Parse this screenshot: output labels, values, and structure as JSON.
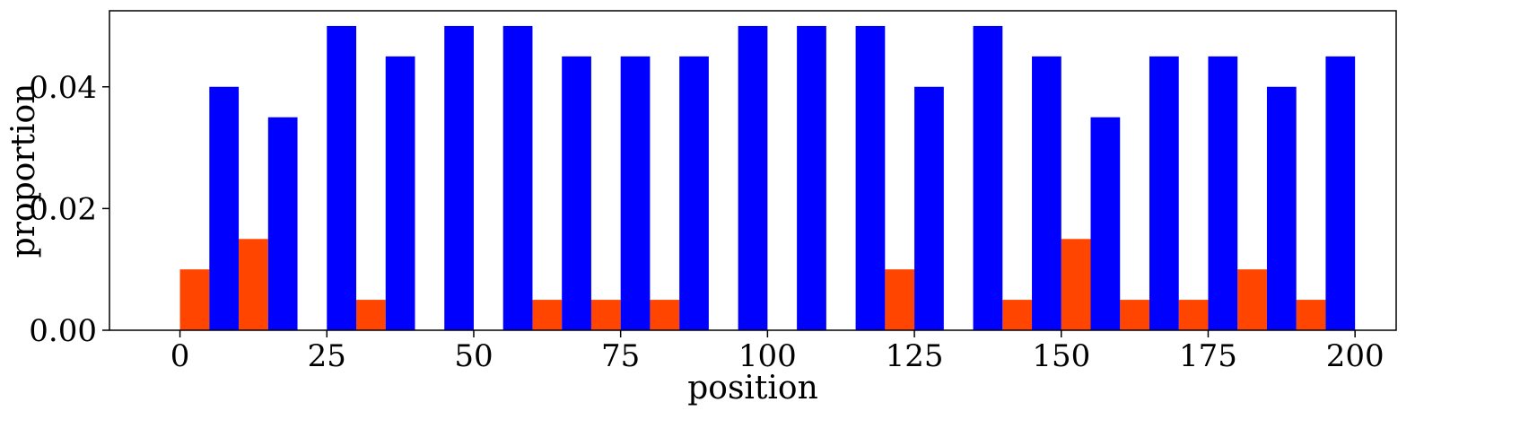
{
  "chart_data": {
    "type": "bar",
    "xlabel": "position",
    "ylabel": "proportion",
    "xlim": [
      -12,
      207
    ],
    "ylim": [
      0,
      0.0525
    ],
    "xticks": [
      0,
      25,
      50,
      75,
      100,
      125,
      150,
      175,
      200
    ],
    "yticks": [
      0.0,
      0.02,
      0.04
    ],
    "ytick_labels": [
      "0.00",
      "0.02",
      "0.04"
    ],
    "bin_width": 10,
    "bin_starts": [
      0,
      10,
      20,
      30,
      40,
      50,
      60,
      70,
      80,
      90,
      100,
      110,
      120,
      130,
      140,
      150,
      160,
      170,
      180,
      190
    ],
    "series": [
      {
        "color": "#ff4500",
        "values": [
          0.01,
          0.015,
          0.0,
          0.005,
          0.0,
          0.0,
          0.005,
          0.005,
          0.005,
          0.0,
          0.0,
          0.0,
          0.01,
          0.0,
          0.005,
          0.015,
          0.005,
          0.005,
          0.01,
          0.005
        ]
      },
      {
        "color": "#0000ff",
        "values": [
          0.04,
          0.035,
          0.05,
          0.045,
          0.05,
          0.05,
          0.045,
          0.045,
          0.045,
          0.05,
          0.05,
          0.05,
          0.04,
          0.05,
          0.045,
          0.035,
          0.045,
          0.045,
          0.04,
          0.045
        ]
      }
    ],
    "grid": false,
    "legend": false
  }
}
